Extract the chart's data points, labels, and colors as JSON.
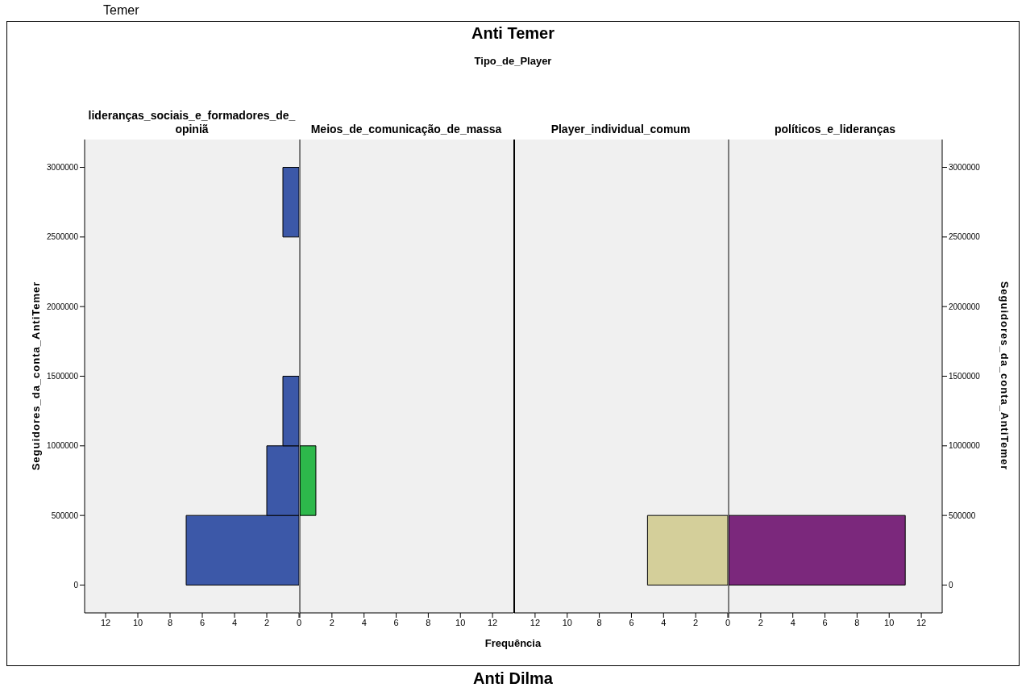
{
  "chart_data": [
    {
      "type": "histogram",
      "orientation": "horizontal",
      "ylabel": "Seguidores_da_conta_AntiTemer",
      "bins": [
        0,
        500000,
        1000000,
        1500000,
        2000000,
        2500000,
        3000000
      ],
      "series": [
        {
          "name": "lideranças_sociais_e_formadores_de_opiniã",
          "color": "#3c58a8",
          "values": [
            7,
            2,
            1,
            0,
            0,
            1
          ]
        }
      ],
      "xlim": [
        13.3,
        0
      ],
      "xticks": [
        0,
        2,
        4,
        6,
        8,
        10,
        12
      ],
      "ylim": [
        -200000,
        3200000
      ],
      "yticks": [
        0,
        500000,
        1000000,
        1500000,
        2000000,
        2500000,
        3000000
      ]
    },
    {
      "type": "histogram",
      "orientation": "horizontal",
      "bins": [
        0,
        500000,
        1000000,
        1500000,
        2000000,
        2500000,
        3000000
      ],
      "series": [
        {
          "name": "Meios_de_comunicação_de_massa",
          "color": "#2db84b",
          "values": [
            0,
            1,
            0,
            0,
            0,
            0
          ]
        }
      ],
      "xlim": [
        0,
        13.3
      ],
      "xticks": [
        {
          "value": 0,
          "label": null
        },
        2,
        4,
        6,
        8,
        10,
        12
      ],
      "ylim": [
        -200000,
        3200000
      ],
      "tick_labels": "x"
    },
    {
      "type": "histogram",
      "orientation": "horizontal",
      "bins": [
        0,
        500000,
        1000000,
        1500000,
        2000000,
        2500000,
        3000000
      ],
      "series": [
        {
          "name": "Player_individual_comum",
          "color": "#d4cf9a",
          "values": [
            5,
            0,
            0,
            0,
            0,
            0
          ]
        }
      ],
      "xlim": [
        13.3,
        0
      ],
      "xticks": [
        0,
        2,
        4,
        6,
        8,
        10,
        12
      ],
      "ylim": [
        -200000,
        3200000
      ],
      "tick_labels": "x"
    },
    {
      "type": "histogram",
      "orientation": "horizontal",
      "ylabel": "Seguidores_da_conta_AntiTemer",
      "bins": [
        0,
        500000,
        1000000,
        1500000,
        2000000,
        2500000,
        3000000
      ],
      "series": [
        {
          "name": "políticos_e_lideranças",
          "color": "#7b287c",
          "values": [
            11,
            0,
            0,
            0,
            0,
            0
          ]
        }
      ],
      "xlim": [
        0,
        13.3
      ],
      "xticks": [
        {
          "value": 0,
          "label": null
        },
        2,
        4,
        6,
        8,
        10,
        12
      ],
      "ylim": [
        -200000,
        3200000
      ],
      "yticks": [
        0,
        500000,
        1000000,
        1500000,
        2000000,
        2500000,
        3000000
      ]
    },
    {
      "type": "other",
      "title": "Anti Temer",
      "subtitle": "Tipo_de_Player",
      "xlabel": "Frequência",
      "annotations": [
        "Temer",
        "Anti Dilma"
      ]
    }
  ]
}
